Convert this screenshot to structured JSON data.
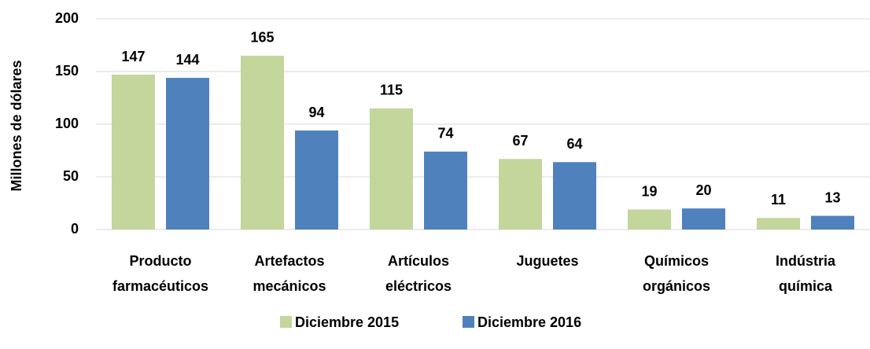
{
  "chart_data": {
    "type": "bar",
    "ylabel": "Millones de dólares",
    "categories": [
      "Producto farmacéuticos",
      "Artefactos mecánicos",
      "Artículos eléctricos",
      "Juguetes",
      "Químicos orgánicos",
      "Indústria química"
    ],
    "series": [
      {
        "name": "Diciembre 2015",
        "color": "#c3d69b",
        "values": [
          147,
          165,
          115,
          67,
          19,
          11
        ]
      },
      {
        "name": "Diciembre 2016",
        "color": "#4f81bd",
        "values": [
          144,
          94,
          74,
          64,
          20,
          13
        ]
      }
    ],
    "ylim": [
      0,
      200
    ],
    "yticks": [
      0,
      50,
      100,
      150,
      200
    ],
    "grid": true,
    "legend": "bottom"
  }
}
